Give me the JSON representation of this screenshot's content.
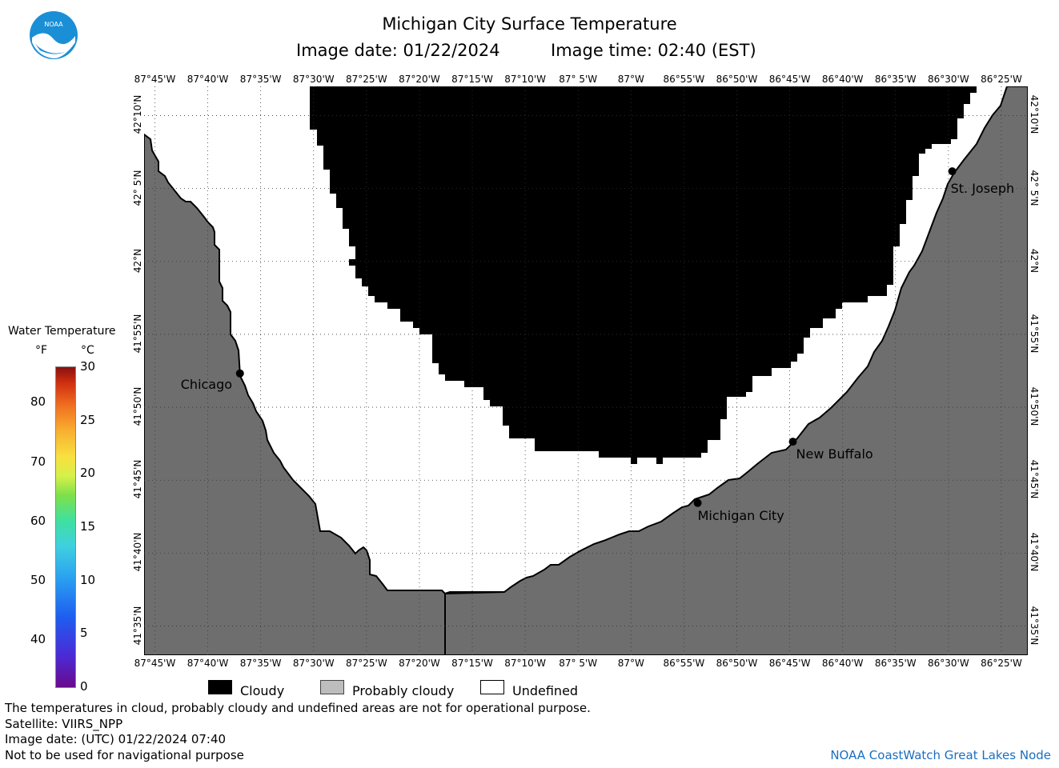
{
  "header": {
    "title": "Michigan City Surface Temperature",
    "date_label": "Image date: 01/22/2024",
    "time_label": "Image time: 02:40 (EST)"
  },
  "logo": {
    "text": "NOAA",
    "color": "#1a8fd6"
  },
  "map": {
    "lon_ticks": [
      "87°45'W",
      "87°40'W",
      "87°35'W",
      "87°30'W",
      "87°25'W",
      "87°20'W",
      "87°15'W",
      "87°10'W",
      "87° 5'W",
      "87°W",
      "86°55'W",
      "86°50'W",
      "86°45'W",
      "86°40'W",
      "86°35'W",
      "86°30'W",
      "86°25'W"
    ],
    "lat_ticks": [
      "42°10'N",
      "42° 5'N",
      "42°N",
      "41°55'N",
      "41°50'N",
      "41°45'N",
      "41°40'N",
      "41°35'N"
    ],
    "cities": [
      {
        "name": "Chicago",
        "lon": -87.616,
        "lat": 41.872
      },
      {
        "name": "St. Joseph",
        "lon": -86.494,
        "lat": 42.103
      },
      {
        "name": "New Buffalo",
        "lon": -86.745,
        "lat": 41.794
      },
      {
        "name": "Michigan City",
        "lon": -86.895,
        "lat": 41.724
      }
    ],
    "colors": {
      "land": "#6e6e6e",
      "cloudy": "#000000",
      "undefined": "#ffffff",
      "probably_cloudy": "#bdbdbd"
    }
  },
  "colorbar": {
    "title": "Water Temperature",
    "unit_f": "°F",
    "unit_c": "°C",
    "f_labels": [
      "80",
      "70",
      "60",
      "50",
      "40"
    ],
    "c_labels": [
      "30",
      "25",
      "20",
      "15",
      "10",
      "5",
      "0"
    ]
  },
  "legend": {
    "cloudy": "Cloudy",
    "probably_cloudy": "Probably cloudy",
    "undefined": "Undefined"
  },
  "footer": {
    "line1": "The temperatures in cloud, probably cloudy and undefined areas are not for operational purpose.",
    "line2": "Satellite: VIIRS_NPP",
    "line3": "Image date: (UTC) 01/22/2024  07:40",
    "line4": "Not to be used for navigational purpose",
    "credit": "NOAA CoastWatch Great Lakes Node"
  }
}
